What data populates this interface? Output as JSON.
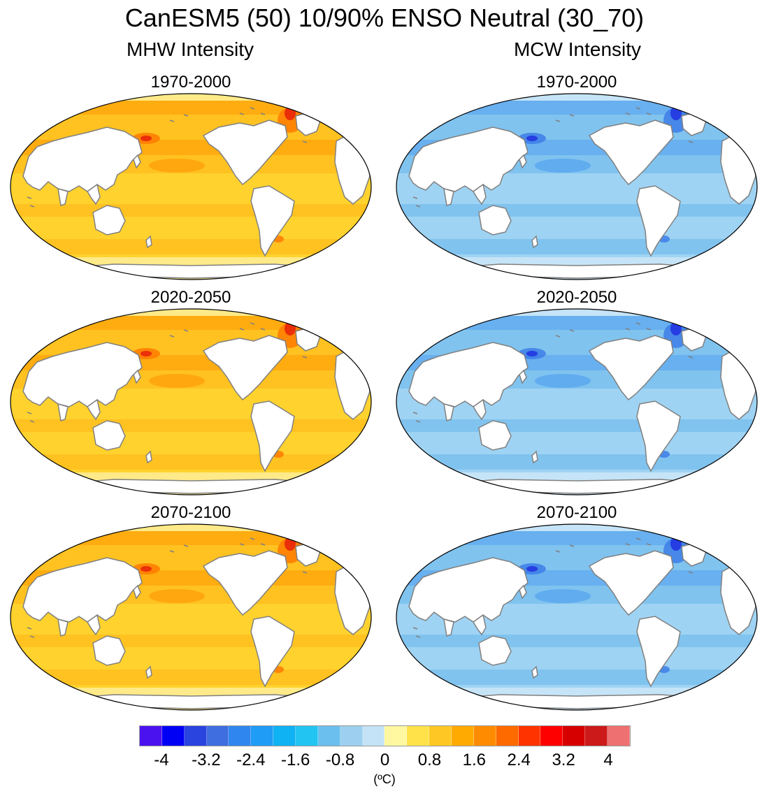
{
  "title": "CanESM5 (50) 10/90% ENSO Neutral (30_70)",
  "columns": [
    {
      "label": "MHW Intensity"
    },
    {
      "label": "MCW Intensity"
    }
  ],
  "panels": [
    {
      "col": 0,
      "row": 0,
      "period": "1970-2000"
    },
    {
      "col": 1,
      "row": 0,
      "period": "1970-2000"
    },
    {
      "col": 0,
      "row": 1,
      "period": "2020-2050"
    },
    {
      "col": 1,
      "row": 1,
      "period": "2020-2050"
    },
    {
      "col": 0,
      "row": 2,
      "period": "2070-2100"
    },
    {
      "col": 1,
      "row": 2,
      "period": "2070-2100"
    }
  ],
  "colorbar": {
    "colors": [
      "#4b12f0",
      "#0000f5",
      "#2a44e0",
      "#3f6ee0",
      "#2f86ee",
      "#1f9cf5",
      "#0fb2f2",
      "#22c4f2",
      "#6bbfee",
      "#9dd0f0",
      "#c4e3f6",
      "#fff8a0",
      "#ffe24a",
      "#ffc723",
      "#ffaa00",
      "#ff8c00",
      "#ff6a00",
      "#ff3300",
      "#ff0000",
      "#d60000",
      "#cc1a1a",
      "#ef7070"
    ],
    "ticks": [
      "-4",
      "-3.2",
      "-2.4",
      "-1.6",
      "-0.8",
      "0",
      "0.8",
      "1.6",
      "2.4",
      "3.2",
      "4"
    ],
    "units": "(ºC)"
  },
  "palettes": {
    "mhw": {
      "base": "#ffd22e",
      "mid": "#ffbe1e",
      "hot": "#ffa20a",
      "hotter": "#ff7a00",
      "hottest": "#e6200a",
      "pale": "#fff0a0"
    },
    "mcw": {
      "base": "#9fd3f3",
      "mid": "#78bfee",
      "hot": "#5aa8ee",
      "hotter": "#3d7ee8",
      "hottest": "#2030e0",
      "pale": "#cfe8f8"
    }
  }
}
